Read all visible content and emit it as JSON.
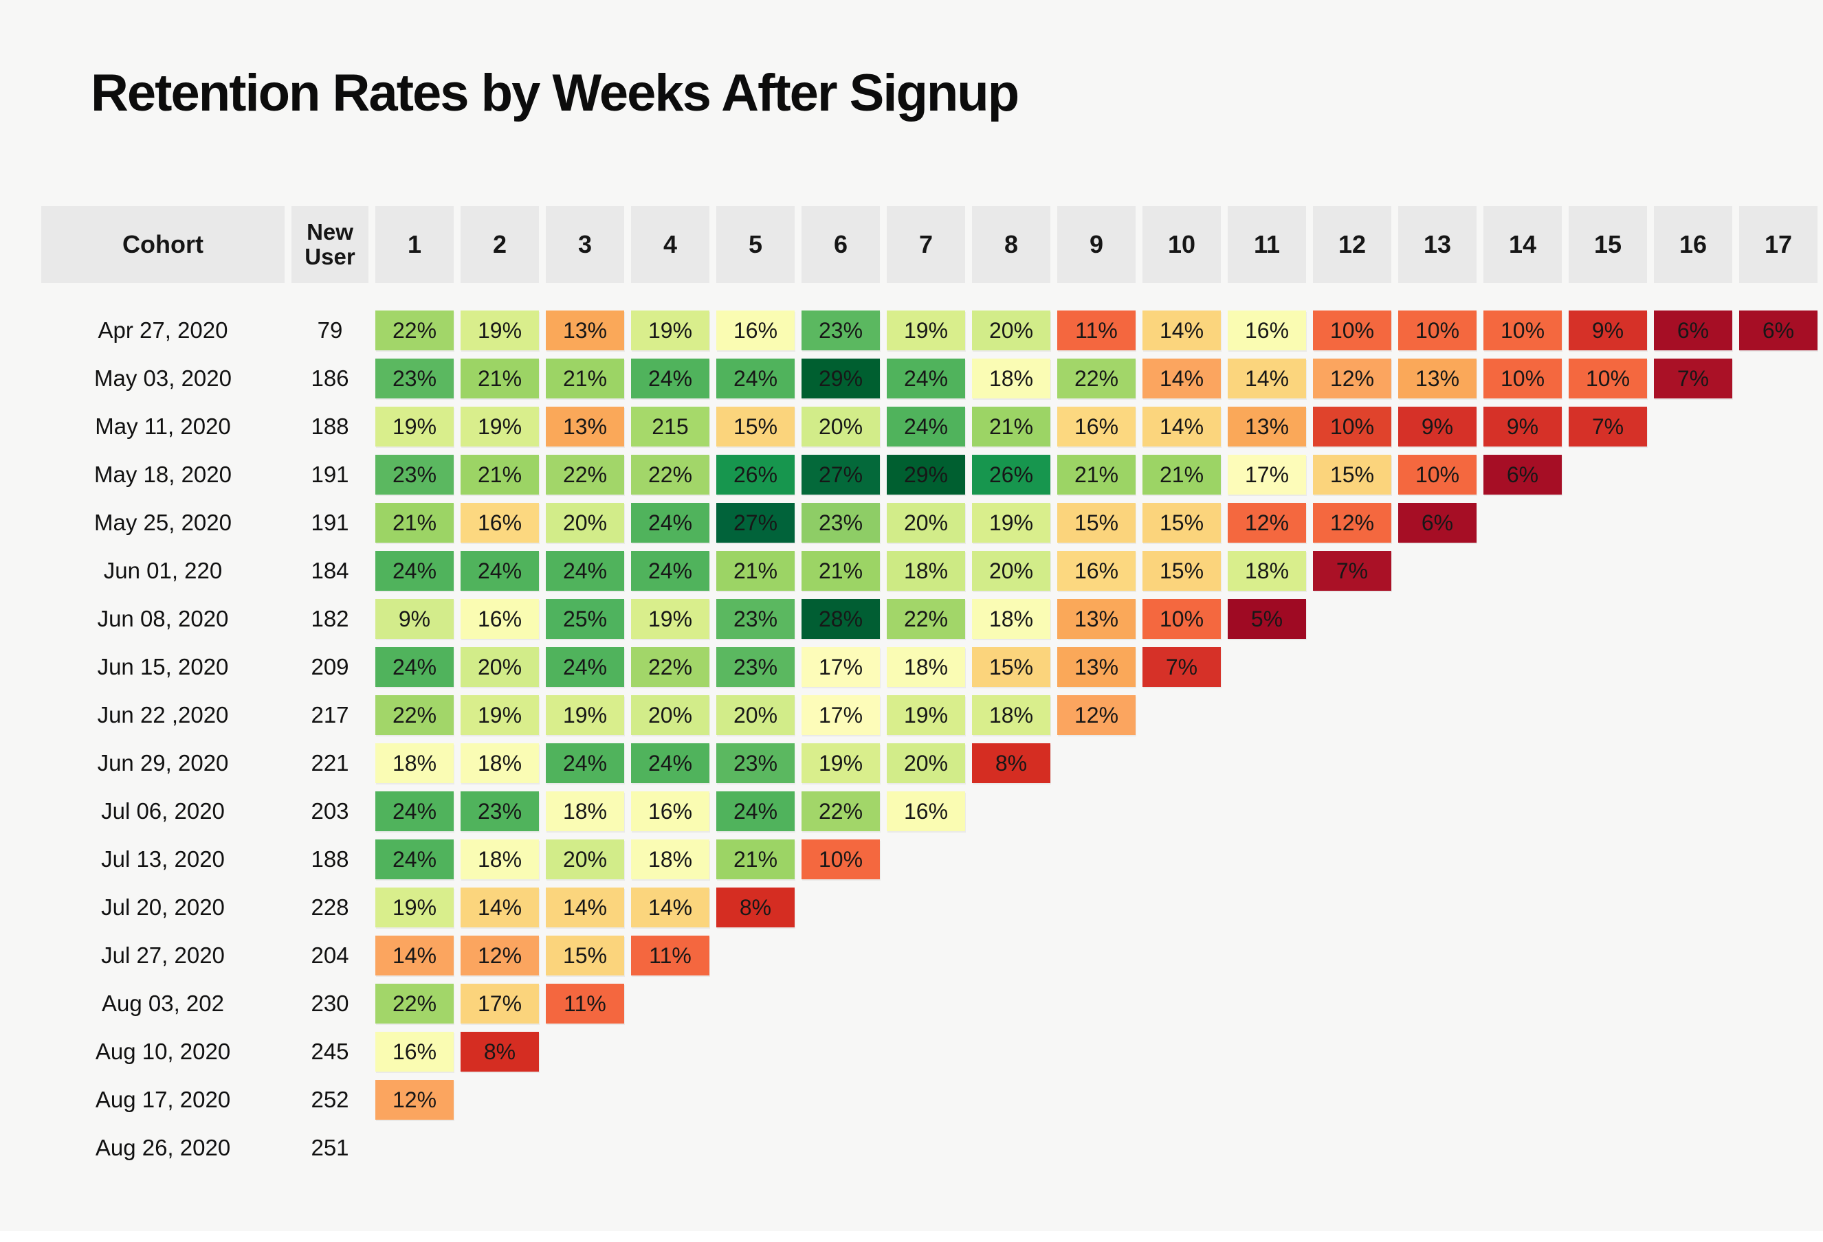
{
  "chart_data": {
    "type": "heatmap",
    "title": "Retention Rates by Weeks After Signup",
    "cohort_header": "Cohort",
    "new_user_header": "New User",
    "week_headers": [
      "1",
      "2",
      "3",
      "4",
      "5",
      "6",
      "7",
      "8",
      "9",
      "10",
      "11",
      "12",
      "13",
      "14",
      "15",
      "16",
      "17"
    ],
    "unit": "percent retention by week after signup",
    "rows": [
      {
        "cohort": "Apr 27, 2020",
        "new_users": "79",
        "values": [
          {
            "v": "22%"
          },
          {
            "v": "19%"
          },
          {
            "v": "13%"
          },
          {
            "v": "19%"
          },
          {
            "v": "16%"
          },
          {
            "v": "23%"
          },
          {
            "v": "19%"
          },
          {
            "v": "20%"
          },
          {
            "v": "11%"
          },
          {
            "v": "14%"
          },
          {
            "v": "16%"
          },
          {
            "v": "10%"
          },
          {
            "v": "10%"
          },
          {
            "v": "10%"
          },
          {
            "v": "9%"
          },
          {
            "v": "6%"
          },
          {
            "v": "6%"
          }
        ]
      },
      {
        "cohort": "May 03, 2020",
        "new_users": "186",
        "values": [
          {
            "v": "23%"
          },
          {
            "v": "21%"
          },
          {
            "v": "21%"
          },
          {
            "v": "24%"
          },
          {
            "v": "24%"
          },
          {
            "v": "29%"
          },
          {
            "v": "24%"
          },
          {
            "v": "18%"
          },
          {
            "v": "22%"
          },
          {
            "v": "14%",
            "c": "#fba55f"
          },
          {
            "v": "14%"
          },
          {
            "v": "12%"
          },
          {
            "v": "13%"
          },
          {
            "v": "10%"
          },
          {
            "v": "10%"
          },
          {
            "v": "7%"
          }
        ]
      },
      {
        "cohort": "May 11, 2020",
        "new_users": "188",
        "values": [
          {
            "v": "19%"
          },
          {
            "v": "19%"
          },
          {
            "v": "13%"
          },
          {
            "v": "215",
            "c": "#a6d96a"
          },
          {
            "v": "15%"
          },
          {
            "v": "20%"
          },
          {
            "v": "24%"
          },
          {
            "v": "21%"
          },
          {
            "v": "16%",
            "c": "#fcd880"
          },
          {
            "v": "14%"
          },
          {
            "v": "13%"
          },
          {
            "v": "10%",
            "c": "#e0432c"
          },
          {
            "v": "9%"
          },
          {
            "v": "9%"
          },
          {
            "v": "7%",
            "c": "#d63128"
          }
        ]
      },
      {
        "cohort": "May 18, 2020",
        "new_users": "191",
        "values": [
          {
            "v": "23%"
          },
          {
            "v": "21%"
          },
          {
            "v": "22%"
          },
          {
            "v": "22%"
          },
          {
            "v": "26%"
          },
          {
            "v": "27%"
          },
          {
            "v": "29%"
          },
          {
            "v": "26%"
          },
          {
            "v": "21%"
          },
          {
            "v": "21%"
          },
          {
            "v": "17%"
          },
          {
            "v": "15%"
          },
          {
            "v": "10%"
          },
          {
            "v": "6%"
          }
        ]
      },
      {
        "cohort": "May 25, 2020",
        "new_users": "191",
        "values": [
          {
            "v": "21%"
          },
          {
            "v": "16%",
            "c": "#fcd880"
          },
          {
            "v": "20%"
          },
          {
            "v": "24%"
          },
          {
            "v": "27%",
            "c": "#01633a"
          },
          {
            "v": "23%",
            "c": "#8ecd66"
          },
          {
            "v": "20%"
          },
          {
            "v": "19%"
          },
          {
            "v": "15%"
          },
          {
            "v": "15%"
          },
          {
            "v": "12%",
            "c": "#f4683f"
          },
          {
            "v": "12%",
            "c": "#f4683f"
          },
          {
            "v": "6%"
          }
        ]
      },
      {
        "cohort": "Jun 01, 220",
        "new_users": "184",
        "values": [
          {
            "v": "24%"
          },
          {
            "v": "24%"
          },
          {
            "v": "24%"
          },
          {
            "v": "24%"
          },
          {
            "v": "21%"
          },
          {
            "v": "21%"
          },
          {
            "v": "18%",
            "c": "#cdea84"
          },
          {
            "v": "20%"
          },
          {
            "v": "16%",
            "c": "#fcd880"
          },
          {
            "v": "15%"
          },
          {
            "v": "18%",
            "c": "#d9ee8c"
          },
          {
            "v": "7%"
          }
        ]
      },
      {
        "cohort": "Jun 08, 2020",
        "new_users": "182",
        "values": [
          {
            "v": "9%",
            "c": "#d3ec8b"
          },
          {
            "v": "16%"
          },
          {
            "v": "25%"
          },
          {
            "v": "19%"
          },
          {
            "v": "23%"
          },
          {
            "v": "28%"
          },
          {
            "v": "22%"
          },
          {
            "v": "18%"
          },
          {
            "v": "13%"
          },
          {
            "v": "10%"
          },
          {
            "v": "5%"
          }
        ]
      },
      {
        "cohort": "Jun 15, 2020",
        "new_users": "209",
        "values": [
          {
            "v": "24%"
          },
          {
            "v": "20%"
          },
          {
            "v": "24%"
          },
          {
            "v": "22%"
          },
          {
            "v": "23%"
          },
          {
            "v": "17%"
          },
          {
            "v": "18%"
          },
          {
            "v": "15%"
          },
          {
            "v": "13%"
          },
          {
            "v": "7%",
            "c": "#d63128"
          }
        ]
      },
      {
        "cohort": "Jun 22 ,2020",
        "new_users": "217",
        "values": [
          {
            "v": "22%"
          },
          {
            "v": "19%"
          },
          {
            "v": "19%"
          },
          {
            "v": "20%"
          },
          {
            "v": "20%"
          },
          {
            "v": "17%"
          },
          {
            "v": "19%"
          },
          {
            "v": "18%",
            "c": "#d9ee8c"
          },
          {
            "v": "12%"
          }
        ]
      },
      {
        "cohort": "Jun 29, 2020",
        "new_users": "221",
        "values": [
          {
            "v": "18%"
          },
          {
            "v": "18%"
          },
          {
            "v": "24%"
          },
          {
            "v": "24%"
          },
          {
            "v": "23%"
          },
          {
            "v": "19%"
          },
          {
            "v": "20%"
          },
          {
            "v": "8%"
          }
        ]
      },
      {
        "cohort": "Jul 06, 2020",
        "new_users": "203",
        "values": [
          {
            "v": "24%"
          },
          {
            "v": "23%",
            "c": "#50b35c"
          },
          {
            "v": "18%"
          },
          {
            "v": "16%"
          },
          {
            "v": "24%"
          },
          {
            "v": "22%"
          },
          {
            "v": "16%"
          }
        ]
      },
      {
        "cohort": "Jul 13, 2020",
        "new_users": "188",
        "values": [
          {
            "v": "24%"
          },
          {
            "v": "18%"
          },
          {
            "v": "20%"
          },
          {
            "v": "18%"
          },
          {
            "v": "21%"
          },
          {
            "v": "10%"
          }
        ]
      },
      {
        "cohort": "Jul 20, 2020",
        "new_users": "228",
        "values": [
          {
            "v": "19%"
          },
          {
            "v": "14%"
          },
          {
            "v": "14%"
          },
          {
            "v": "14%"
          },
          {
            "v": "8%"
          }
        ]
      },
      {
        "cohort": "Jul 27, 2020",
        "new_users": "204",
        "values": [
          {
            "v": "14%",
            "c": "#fba55f"
          },
          {
            "v": "12%"
          },
          {
            "v": "15%"
          },
          {
            "v": "11%"
          }
        ]
      },
      {
        "cohort": "Aug 03, 202",
        "new_users": "230",
        "values": [
          {
            "v": "22%"
          },
          {
            "v": "17%",
            "c": "#fbd47c"
          },
          {
            "v": "11%"
          }
        ]
      },
      {
        "cohort": "Aug 10, 2020",
        "new_users": "245",
        "values": [
          {
            "v": "16%"
          },
          {
            "v": "8%"
          }
        ]
      },
      {
        "cohort": "Aug 17, 2020",
        "new_users": "252",
        "values": [
          {
            "v": "12%"
          }
        ]
      },
      {
        "cohort": "Aug 26, 2020",
        "new_users": "251",
        "values": []
      }
    ]
  },
  "colors": {
    "page_bg": "#f7f7f6",
    "header_bg": "#e9e9e9",
    "title_text": "#0c0c0c",
    "cell_text": "#171717",
    "colormap": {
      "5": "#9f0a23",
      "6": "#a60e25",
      "7": "#aa1126",
      "8": "#d52d22",
      "9": "#d63128",
      "10": "#f4683f",
      "11": "#f4673f",
      "12": "#fba55f",
      "13": "#faa859",
      "14": "#fbd57d",
      "15": "#fbd47c",
      "16": "#fafcb2",
      "17": "#fdfcb9",
      "18": "#fafcb4",
      "19": "#d9ee8c",
      "20": "#d2ec89",
      "21": "#9cd465",
      "22": "#a2d669",
      "23": "#5bb860",
      "24": "#50b35c",
      "25": "#4fb35e",
      "26": "#17964e",
      "27": "#04693a",
      "28": "#015e33",
      "29": "#005f30"
    }
  }
}
